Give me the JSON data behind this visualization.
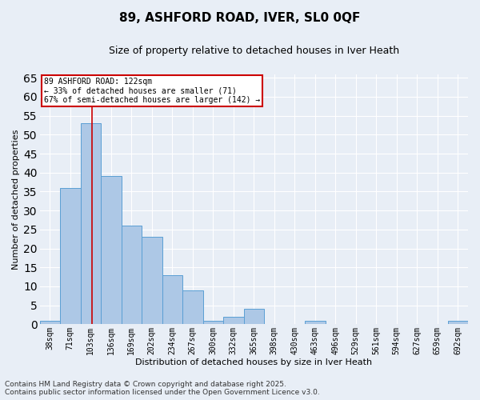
{
  "title_line1": "89, ASHFORD ROAD, IVER, SL0 0QF",
  "title_line2": "Size of property relative to detached houses in Iver Heath",
  "xlabel": "Distribution of detached houses by size in Iver Heath",
  "ylabel": "Number of detached properties",
  "bar_labels": [
    "38sqm",
    "71sqm",
    "103sqm",
    "136sqm",
    "169sqm",
    "202sqm",
    "234sqm",
    "267sqm",
    "300sqm",
    "332sqm",
    "365sqm",
    "398sqm",
    "430sqm",
    "463sqm",
    "496sqm",
    "529sqm",
    "561sqm",
    "594sqm",
    "627sqm",
    "659sqm",
    "692sqm"
  ],
  "bar_values": [
    1,
    36,
    53,
    39,
    26,
    23,
    13,
    9,
    1,
    2,
    4,
    0,
    0,
    1,
    0,
    0,
    0,
    0,
    0,
    0,
    1
  ],
  "bar_color": "#adc8e6",
  "bar_edge_color": "#5a9fd4",
  "background_color": "#e8eef6",
  "grid_color": "#ffffff",
  "property_line_color": "#cc0000",
  "annotation_text": "89 ASHFORD ROAD: 122sqm\n← 33% of detached houses are smaller (71)\n67% of semi-detached houses are larger (142) →",
  "annotation_box_color": "#cc0000",
  "ylim": [
    0,
    66
  ],
  "yticks": [
    0,
    5,
    10,
    15,
    20,
    25,
    30,
    35,
    40,
    45,
    50,
    55,
    60,
    65
  ],
  "footnote": "Contains HM Land Registry data © Crown copyright and database right 2025.\nContains public sector information licensed under the Open Government Licence v3.0.",
  "title_fontsize": 11,
  "subtitle_fontsize": 9,
  "label_fontsize": 8,
  "tick_fontsize": 7,
  "footnote_fontsize": 6.5,
  "annot_fontsize": 7
}
